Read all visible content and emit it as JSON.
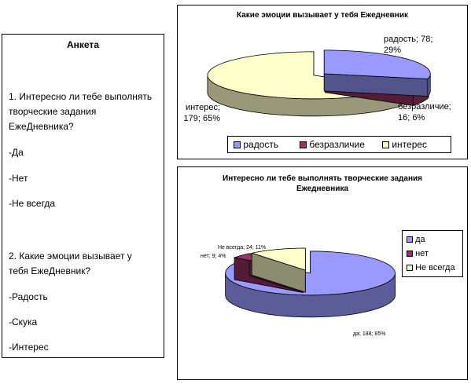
{
  "survey": {
    "title": "Анкета",
    "q1": "1. Интересно ли тебе выполнять творческие задания ЕжеДневника?",
    "q1_options": [
      "-Да",
      "-Нет",
      "-Не всегда"
    ],
    "q2": "2. Какие эмоции вызывает у тебя ЕжеДневник?",
    "q2_options": [
      "-Радость",
      "-Скука",
      "-Интерес"
    ]
  },
  "chart_data": [
    {
      "type": "pie",
      "title": "Какие эмоции вызывает у тебя Ежедневник",
      "categories": [
        "радость",
        "безразличие",
        "интерес"
      ],
      "values": [
        78,
        16,
        179
      ],
      "percents": [
        29,
        6,
        65
      ],
      "data_labels": [
        "радость; 78; 29%",
        "безразличие; 16; 6%",
        "интерес; 179; 65%"
      ],
      "colors": [
        "#9999ff",
        "#993366",
        "#ffffcc"
      ],
      "legend": "bottom",
      "exploded": true,
      "three_d": true
    },
    {
      "type": "pie",
      "title": "Интересно ли тебе выполнять творческие задания Ежедневника",
      "categories": [
        "да",
        "нет",
        "Не всегда"
      ],
      "values": [
        188,
        9,
        24
      ],
      "percents": [
        85,
        4,
        11
      ],
      "data_labels": [
        "да; 188; 85%",
        "нет; 9; 4%",
        "Не всегда; 24; 11%"
      ],
      "colors": [
        "#9999ff",
        "#993366",
        "#ffffcc"
      ],
      "legend": "right",
      "exploded": true,
      "three_d": true
    }
  ]
}
